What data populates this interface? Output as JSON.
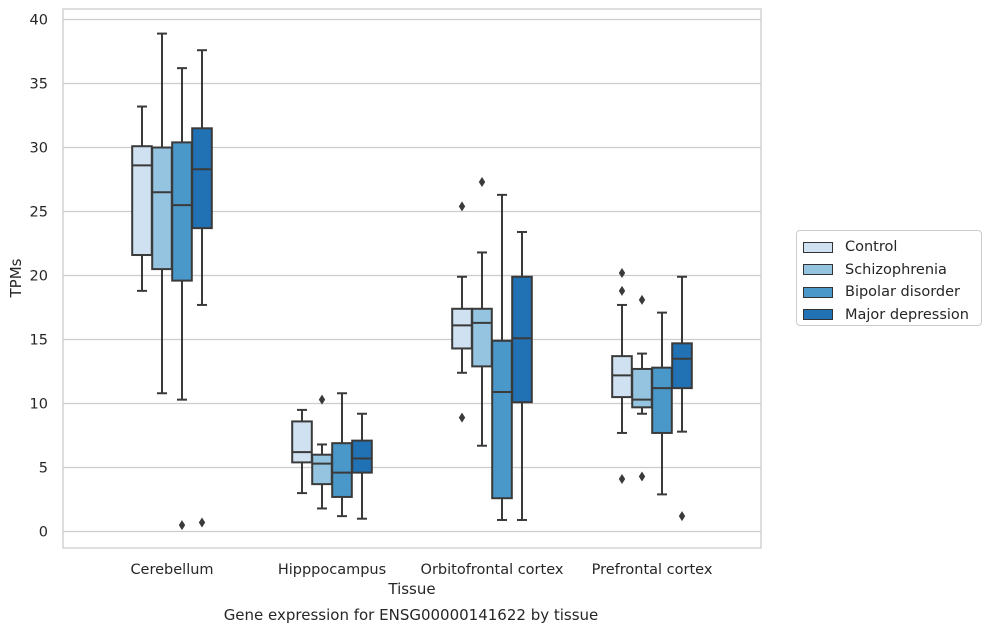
{
  "chart_data": {
    "type": "boxplot",
    "caption": "Gene expression for ENSG00000141622 by tissue",
    "xlabel": "Tissue",
    "ylabel": "TPMs",
    "ylim": [
      -1.2,
      40.7
    ],
    "yticks": [
      0,
      5,
      10,
      15,
      20,
      25,
      30,
      35,
      40
    ],
    "grid": true,
    "legend_position": "right",
    "categories": [
      "Cerebellum",
      "Hipppocampus",
      "Orbitofrontal cortex",
      "Prefrontal cortex"
    ],
    "series": [
      {
        "name": "Control",
        "color": "#d0e1f2",
        "boxes": [
          {
            "whisker_low": 18.8,
            "q1": 21.6,
            "median": 28.6,
            "q3": 30.1,
            "whisker_high": 33.2,
            "outliers": []
          },
          {
            "whisker_low": 3.0,
            "q1": 5.4,
            "median": 6.2,
            "q3": 8.6,
            "whisker_high": 9.5,
            "outliers": []
          },
          {
            "whisker_low": 12.4,
            "q1": 14.3,
            "median": 16.1,
            "q3": 17.4,
            "whisker_high": 19.9,
            "outliers": [
              25.4,
              8.9
            ]
          },
          {
            "whisker_low": 7.7,
            "q1": 10.5,
            "median": 12.2,
            "q3": 13.7,
            "whisker_high": 17.7,
            "outliers": [
              20.2,
              18.8,
              4.1
            ]
          }
        ]
      },
      {
        "name": "Schizophrenia",
        "color": "#94c4df",
        "boxes": [
          {
            "whisker_low": 10.8,
            "q1": 20.5,
            "median": 26.5,
            "q3": 30.0,
            "whisker_high": 38.9,
            "outliers": []
          },
          {
            "whisker_low": 1.8,
            "q1": 3.7,
            "median": 5.3,
            "q3": 6.0,
            "whisker_high": 6.8,
            "outliers": [
              10.3
            ]
          },
          {
            "whisker_low": 6.7,
            "q1": 12.9,
            "median": 16.3,
            "q3": 17.4,
            "whisker_high": 21.8,
            "outliers": [
              27.3
            ]
          },
          {
            "whisker_low": 9.2,
            "q1": 9.7,
            "median": 10.3,
            "q3": 12.7,
            "whisker_high": 13.9,
            "outliers": [
              18.1,
              4.3
            ]
          }
        ]
      },
      {
        "name": "Bipolar disorder",
        "color": "#4a98c9",
        "boxes": [
          {
            "whisker_low": 10.3,
            "q1": 19.6,
            "median": 25.5,
            "q3": 30.4,
            "whisker_high": 36.2,
            "outliers": [
              0.5
            ]
          },
          {
            "whisker_low": 1.2,
            "q1": 2.7,
            "median": 4.6,
            "q3": 6.9,
            "whisker_high": 10.8,
            "outliers": []
          },
          {
            "whisker_low": 0.9,
            "q1": 2.6,
            "median": 10.9,
            "q3": 14.9,
            "whisker_high": 26.3,
            "outliers": []
          },
          {
            "whisker_low": 2.9,
            "q1": 7.7,
            "median": 11.2,
            "q3": 12.8,
            "whisker_high": 17.1,
            "outliers": []
          }
        ]
      },
      {
        "name": "Major depression",
        "color": "#2171b5",
        "boxes": [
          {
            "whisker_low": 17.7,
            "q1": 23.7,
            "median": 28.3,
            "q3": 31.5,
            "whisker_high": 37.6,
            "outliers": [
              0.7
            ]
          },
          {
            "whisker_low": 1.0,
            "q1": 4.6,
            "median": 5.7,
            "q3": 7.1,
            "whisker_high": 9.2,
            "outliers": []
          },
          {
            "whisker_low": 0.9,
            "q1": 10.1,
            "median": 15.1,
            "q3": 19.9,
            "whisker_high": 23.4,
            "outliers": []
          },
          {
            "whisker_low": 7.8,
            "q1": 11.2,
            "median": 13.5,
            "q3": 14.7,
            "whisker_high": 19.9,
            "outliers": [
              1.2
            ]
          }
        ]
      }
    ]
  }
}
